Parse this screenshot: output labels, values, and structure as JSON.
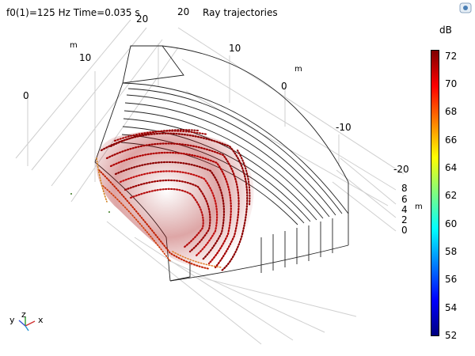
{
  "header": {
    "info": "f0(1)=125 Hz Time=0.035 s",
    "title": "Ray trajectories"
  },
  "axes": {
    "x_unit": "m",
    "y_unit": "m",
    "z_unit": "m",
    "x_ticks": [
      "20",
      "10",
      "0"
    ],
    "y_ticks": [
      "20",
      "10",
      "0",
      "-10",
      "-20"
    ],
    "z_ticks": [
      "8",
      "6",
      "4",
      "2",
      "0"
    ]
  },
  "colorbar": {
    "unit": "dB",
    "ticks": [
      "72",
      "70",
      "68",
      "66",
      "64",
      "62",
      "60",
      "58",
      "56",
      "54",
      "52"
    ],
    "min": 52,
    "max": 72.5,
    "colors": [
      "#00007f",
      "#0000ff",
      "#007fff",
      "#00ffff",
      "#7fff7f",
      "#ffff00",
      "#ff7f00",
      "#ff0000",
      "#7f0000"
    ]
  },
  "triad": {
    "y_label": "y",
    "z_label": "z",
    "x_label": "x"
  },
  "logo": "comsol-icon"
}
